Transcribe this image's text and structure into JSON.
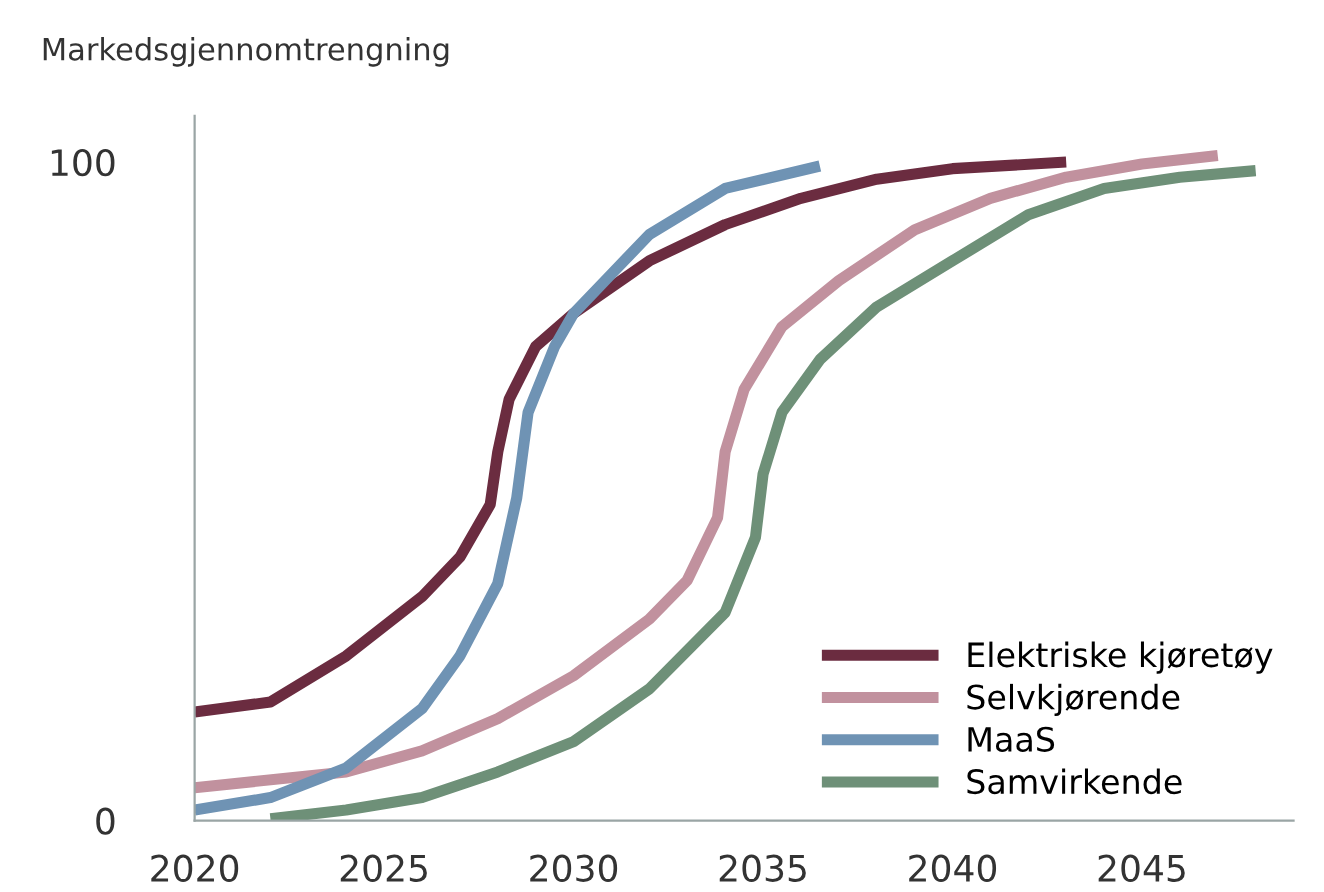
{
  "chart_data": {
    "type": "line",
    "ylabel": "Markedsgjennomtrengning",
    "xlim": [
      2020,
      2049
    ],
    "ylim": [
      0,
      107
    ],
    "xticks": [
      2020,
      2025,
      2030,
      2035,
      2040,
      2045
    ],
    "yticks": [
      0,
      100
    ],
    "grid": false,
    "legend": "bottom right",
    "marker": "none",
    "line_style": "solid",
    "series": [
      {
        "name": "Elektriske kjøretøy",
        "color": "#6b2c40",
        "x": [
          2020,
          2022,
          2024,
          2026,
          2027,
          2027.8,
          2028,
          2028.3,
          2029,
          2030,
          2032,
          2034,
          2036,
          2038,
          2040,
          2043
        ],
        "values": [
          16.5,
          18,
          25,
          34,
          40,
          48,
          56,
          64,
          72,
          77,
          85,
          90.5,
          94.5,
          97.4,
          99,
          100
        ]
      },
      {
        "name": "Selvkjørende",
        "color": "#c1919e",
        "x": [
          2020,
          2024,
          2026,
          2028,
          2030,
          2032,
          2033,
          2033.8,
          2034,
          2034.5,
          2035.5,
          2037,
          2039,
          2041,
          2043,
          2045,
          2047
        ],
        "values": [
          5,
          7.4,
          10.6,
          15.5,
          22,
          30.6,
          36.5,
          46,
          56,
          65.5,
          75,
          82,
          89.7,
          94.5,
          97.7,
          99.7,
          101
        ]
      },
      {
        "name": "MaaS",
        "color": "#6f93b4",
        "x": [
          2020,
          2022,
          2024,
          2026,
          2027,
          2028,
          2028.5,
          2028.8,
          2029.5,
          2030,
          2031,
          2032,
          2034,
          2036.5
        ],
        "values": [
          1.6,
          3.5,
          8,
          17,
          25,
          36,
          49,
          62,
          72,
          77,
          83,
          89,
          96,
          99.4
        ]
      },
      {
        "name": "Samvirkende",
        "color": "#6e9078",
        "x": [
          2022,
          2024,
          2026,
          2028,
          2030,
          2032,
          2034,
          2034.8,
          2035,
          2035.5,
          2036.5,
          2038,
          2040,
          2042,
          2044,
          2046,
          2048
        ],
        "values": [
          0.3,
          1.6,
          3.5,
          7.4,
          12,
          20,
          31.6,
          43,
          52.6,
          62,
          70,
          78,
          85,
          92,
          96,
          97.7,
          98.7
        ]
      }
    ]
  }
}
